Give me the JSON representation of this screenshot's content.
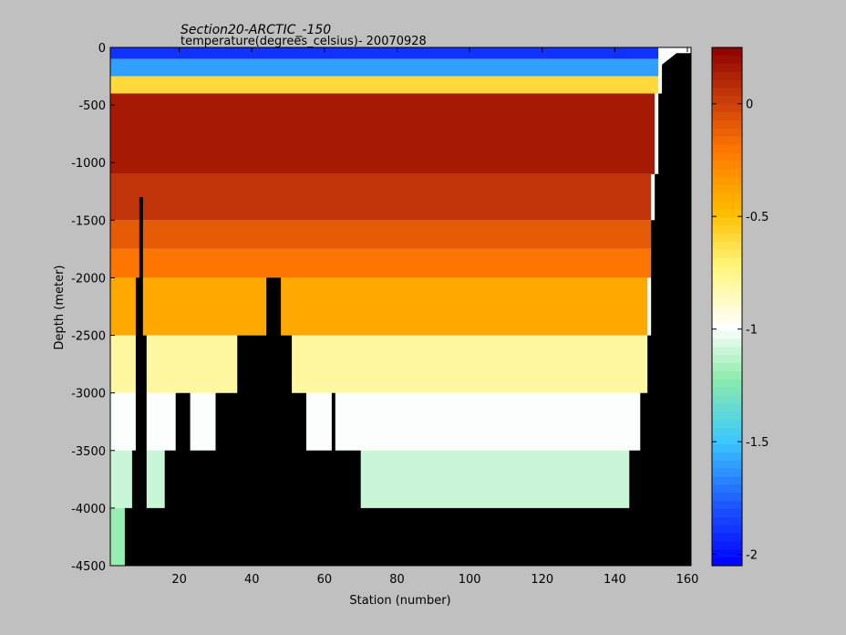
{
  "chart_data": {
    "type": "heatmap",
    "title": "Section20-ARCTIC_-150",
    "subtitle": "temperature(degrees_celsius)- 20070928",
    "xlabel": "Station (number)",
    "ylabel": "Depth (meter)",
    "xlim": [
      1,
      161
    ],
    "ylim": [
      -4500,
      0
    ],
    "x_ticks": [
      20,
      40,
      60,
      80,
      100,
      120,
      140,
      160
    ],
    "y_ticks": [
      0,
      -500,
      -1000,
      -1500,
      -2000,
      -2500,
      -3000,
      -3500,
      -4000,
      -4500
    ],
    "colorbar": {
      "range": [
        -2.05,
        0.25
      ],
      "ticks": [
        0,
        -0.5,
        -1,
        -1.5,
        -2
      ],
      "colormap": "jet-like (blue - cyan - green - white - yellow - orange - dark red)"
    },
    "layers": [
      {
        "depth_top": 0,
        "depth_bottom": -100,
        "stations": [
          1,
          152
        ],
        "temperature": -1.9
      },
      {
        "depth_top": -100,
        "depth_bottom": -250,
        "stations": [
          1,
          152
        ],
        "temperature": -1.6
      },
      {
        "depth_top": -250,
        "depth_bottom": -400,
        "stations": [
          1,
          152
        ],
        "temperature": -0.6
      },
      {
        "depth_top": -400,
        "depth_bottom": -1100,
        "stations": [
          1,
          151
        ],
        "temperature": 0.15
      },
      {
        "depth_top": -1100,
        "depth_bottom": -1500,
        "stations": [
          1,
          150
        ],
        "temperature": 0.05
      },
      {
        "depth_top": -1500,
        "depth_bottom": -1750,
        "stations": [
          1,
          150
        ],
        "temperature": -0.1
      },
      {
        "depth_top": -1750,
        "depth_bottom": -2000,
        "stations": [
          1,
          150
        ],
        "temperature": -0.2
      },
      {
        "depth_top": -2000,
        "depth_bottom": -2500,
        "stations": [
          1,
          149
        ],
        "temperature": -0.4
      },
      {
        "depth_top": -2500,
        "depth_bottom": -3000,
        "stations": [
          1,
          149
        ],
        "temperature": -0.8
      },
      {
        "depth_top": -3000,
        "depth_bottom": -3500,
        "stations": [
          1,
          147
        ],
        "temperature": -1.0
      },
      {
        "depth_top": -3500,
        "depth_bottom": -4000,
        "stations": [
          1,
          144
        ],
        "temperature": -1.1
      },
      {
        "depth_top": -4000,
        "depth_bottom": -4500,
        "stations": [
          1,
          5
        ],
        "temperature": -1.2
      }
    ],
    "bathymetry": [
      [
        1,
        -4500
      ],
      [
        5,
        -4500
      ],
      [
        5,
        -4000
      ],
      [
        7,
        -4000
      ],
      [
        7,
        -3500
      ],
      [
        8,
        -3500
      ],
      [
        8,
        -2000
      ],
      [
        9,
        -2000
      ],
      [
        9,
        -1300
      ],
      [
        10,
        -1300
      ],
      [
        10,
        -2500
      ],
      [
        11,
        -2500
      ],
      [
        11,
        -4000
      ],
      [
        16,
        -4000
      ],
      [
        16,
        -3500
      ],
      [
        19,
        -3500
      ],
      [
        19,
        -3000
      ],
      [
        23,
        -3000
      ],
      [
        23,
        -3500
      ],
      [
        30,
        -3500
      ],
      [
        30,
        -3000
      ],
      [
        36,
        -3000
      ],
      [
        36,
        -2500
      ],
      [
        44,
        -2500
      ],
      [
        44,
        -2000
      ],
      [
        48,
        -2000
      ],
      [
        48,
        -2500
      ],
      [
        51,
        -2500
      ],
      [
        51,
        -3000
      ],
      [
        55,
        -3000
      ],
      [
        55,
        -3500
      ],
      [
        62,
        -3500
      ],
      [
        62,
        -3000
      ],
      [
        63,
        -3000
      ],
      [
        63,
        -3500
      ],
      [
        70,
        -3500
      ],
      [
        70,
        -4000
      ],
      [
        144,
        -4000
      ],
      [
        144,
        -3500
      ],
      [
        147,
        -3500
      ],
      [
        147,
        -3000
      ],
      [
        149,
        -3000
      ],
      [
        149,
        -2500
      ],
      [
        150,
        -2500
      ],
      [
        150,
        -1500
      ],
      [
        151,
        -1500
      ],
      [
        151,
        -1100
      ],
      [
        152,
        -1100
      ],
      [
        152,
        -400
      ],
      [
        153,
        -400
      ],
      [
        153,
        -150
      ],
      [
        155,
        -100
      ],
      [
        157,
        -50
      ],
      [
        161,
        -50
      ],
      [
        161,
        -4500
      ]
    ]
  }
}
